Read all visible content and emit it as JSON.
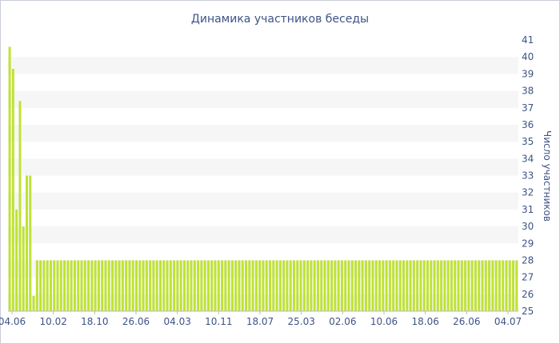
{
  "chart_data": {
    "type": "bar",
    "title": "Динамика участников беседы",
    "ylabel": "Число участников",
    "xlabel": "",
    "ylim": [
      25,
      41
    ],
    "yticks": [
      25,
      26,
      27,
      28,
      29,
      30,
      31,
      32,
      33,
      34,
      35,
      36,
      37,
      38,
      39,
      40,
      41
    ],
    "y_axis_side": "right",
    "grid": "horizontal-bands",
    "legend": "none",
    "bar_color": "#bfe236",
    "band_color": "#f6f6f6",
    "text_color": "#3e5386",
    "x_tick_labels": [
      "04.06",
      "10.02",
      "18.10",
      "26.06",
      "04.03",
      "10.11",
      "18.07",
      "25.03",
      "02.06",
      "10.06",
      "18.06",
      "26.06",
      "04.07"
    ],
    "values": [
      40.6,
      39.3,
      31,
      37.4,
      30,
      33,
      33,
      25.9,
      28,
      28,
      28,
      28,
      28,
      28,
      28,
      28,
      28,
      28,
      28,
      28,
      28,
      28,
      28,
      28,
      28,
      28,
      28,
      28,
      28,
      28,
      28,
      28,
      28,
      28,
      28,
      28,
      28,
      28,
      28,
      28,
      28,
      28,
      28,
      28,
      28,
      28,
      28,
      28,
      28,
      28,
      28,
      28,
      28,
      28,
      28,
      28,
      28,
      28,
      28,
      28,
      28,
      28,
      28,
      28,
      28,
      28,
      28,
      28,
      28,
      28,
      28,
      28,
      28,
      28,
      28,
      28,
      28,
      28,
      28,
      28,
      28,
      28,
      28,
      28,
      28,
      28,
      28,
      28,
      28,
      28,
      28,
      28,
      28,
      28,
      28,
      28,
      28,
      28,
      28,
      28,
      28,
      28,
      28,
      28,
      28,
      28,
      28,
      28,
      28,
      28,
      28,
      28,
      28,
      28,
      28,
      28,
      28,
      28,
      28,
      28,
      28,
      28,
      28,
      28,
      28,
      28,
      28,
      28,
      28,
      28,
      28,
      28,
      28,
      28,
      28,
      28,
      28,
      28,
      28,
      28,
      28,
      28,
      28,
      28,
      28,
      28,
      28,
      28,
      28
    ]
  }
}
